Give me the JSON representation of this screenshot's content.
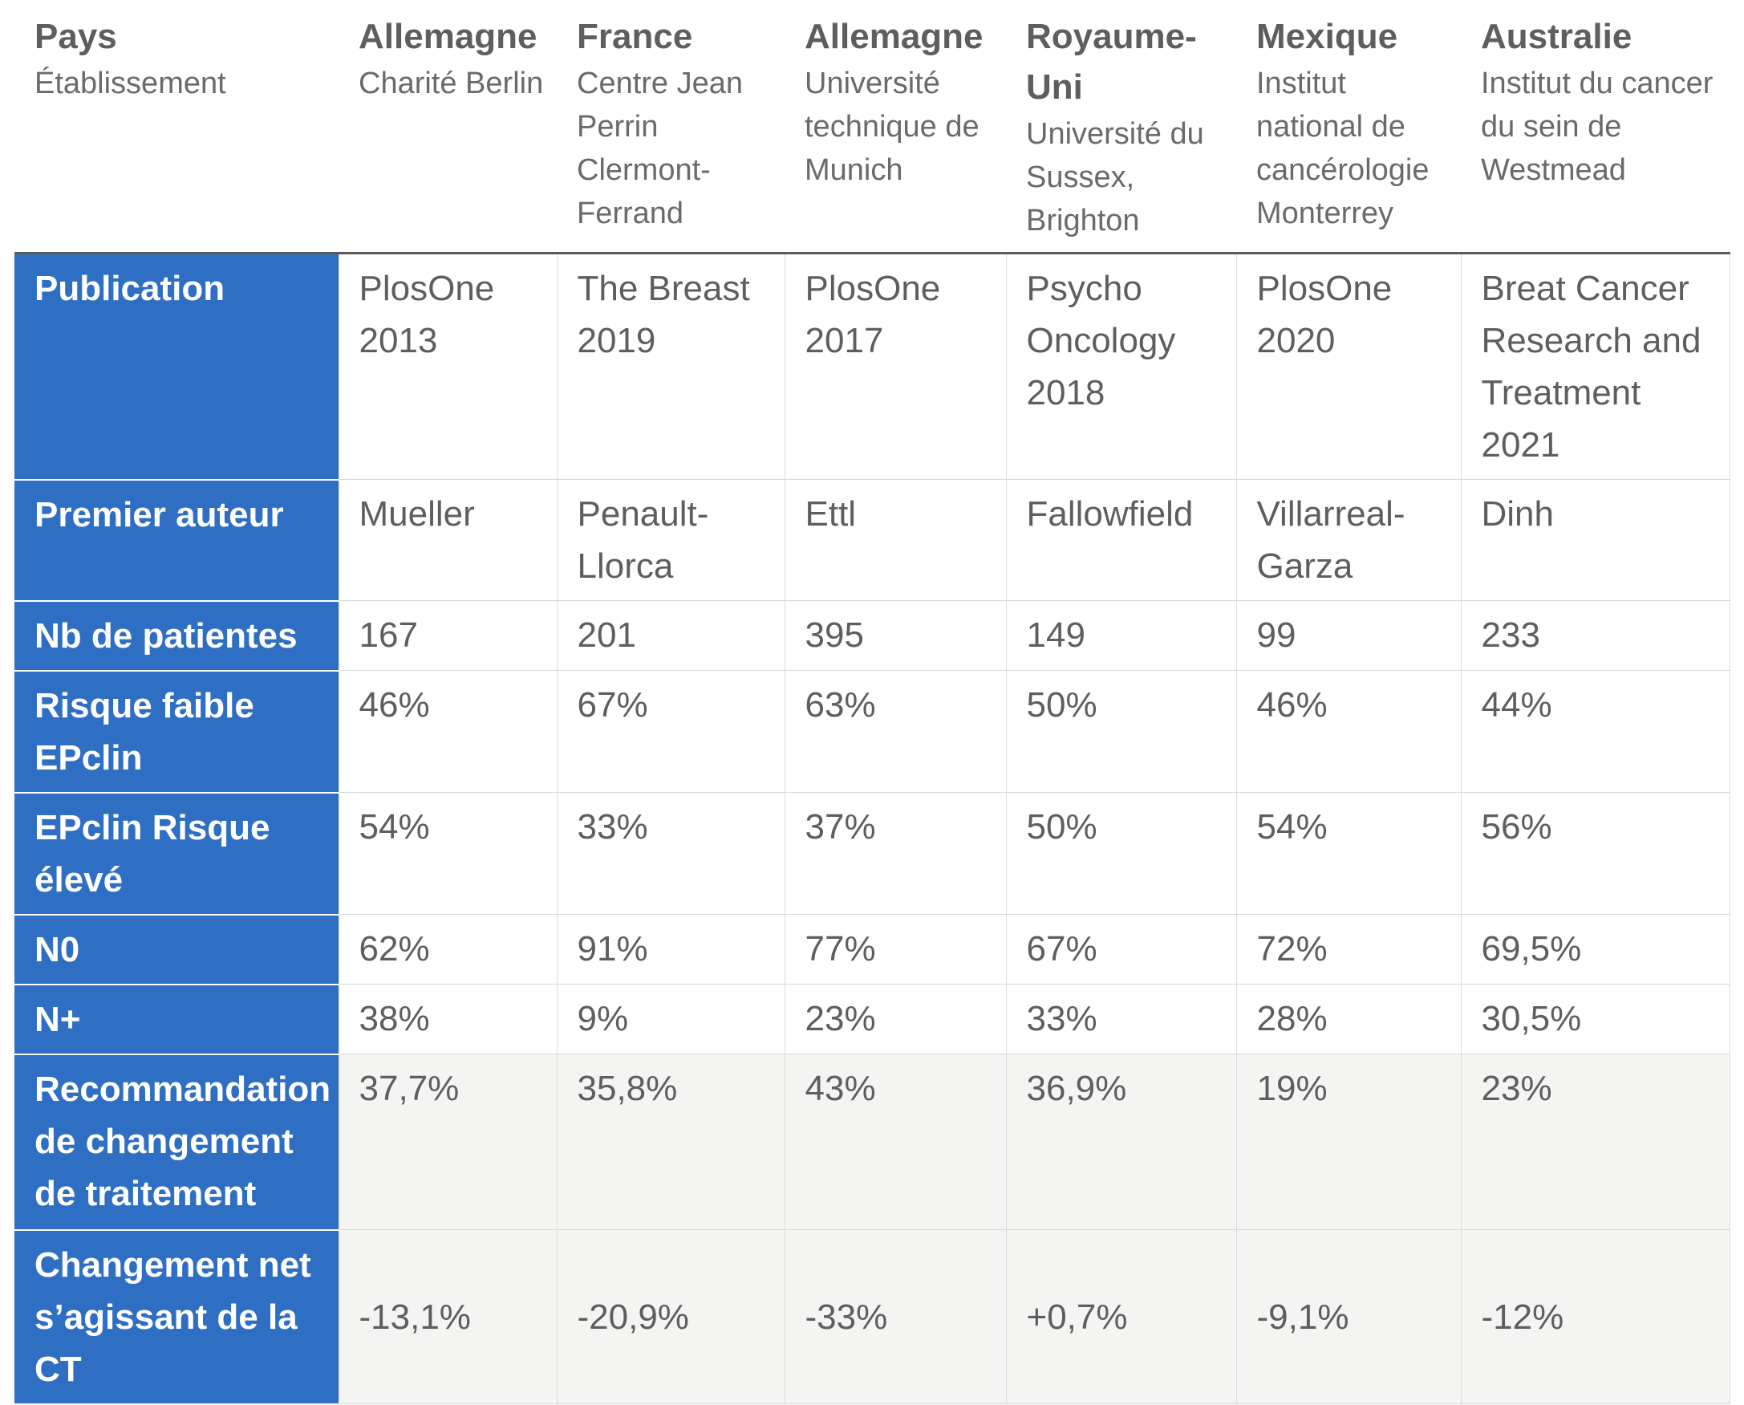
{
  "header": {
    "label_main": "Pays",
    "label_sub": "Établissement",
    "columns": [
      {
        "country": "Allemagne",
        "institution": "Charité Berlin"
      },
      {
        "country": "France",
        "institution": "Centre Jean Perrin Clermont-Ferrand"
      },
      {
        "country": "Allemagne",
        "institution": "Université technique de Munich"
      },
      {
        "country": "Royaume-Uni",
        "institution": "Université du Sussex, Brighton"
      },
      {
        "country": "Mexique",
        "institution": "Institut national de cancérologie Monterrey"
      },
      {
        "country": "Australie",
        "institution": "Institut du cancer du sein de Westmead"
      }
    ]
  },
  "rows": [
    {
      "label": "Publication",
      "values": [
        "PlosOne 2013",
        "The Breast 2019",
        "PlosOne 2017",
        "Psycho Oncology 2018",
        "PlosOne 2020",
        "Breat Cancer Research and Treatment 2021"
      ]
    },
    {
      "label": "Premier auteur",
      "values": [
        "Mueller",
        "Penault-Llorca",
        "Ettl",
        "Fallowfield",
        "Villarreal-Garza",
        "Dinh"
      ]
    },
    {
      "label": "Nb de patientes",
      "values": [
        "167",
        "201",
        "395",
        "149",
        "99",
        "233"
      ]
    },
    {
      "label": "Risque faible EPclin",
      "values": [
        "46%",
        "67%",
        "63%",
        "50%",
        "46%",
        "44%"
      ]
    },
    {
      "label": "EPclin Risque élevé",
      "values": [
        "54%",
        "33%",
        "37%",
        "50%",
        "54%",
        "56%"
      ]
    },
    {
      "label": "N0",
      "values": [
        "62%",
        "91%",
        "77%",
        "67%",
        "72%",
        "69,5%"
      ]
    },
    {
      "label": "N+",
      "values": [
        "38%",
        "9%",
        "23%",
        "33%",
        "28%",
        "30,5%"
      ]
    },
    {
      "label": "Recommandation de changement de traitement",
      "values": [
        "37,7%",
        "35,8%",
        "43%",
        "36,9%",
        "19%",
        "23%"
      ]
    },
    {
      "label": "Changement net s’agissant de la CT",
      "values": [
        "-13,1%",
        "-20,9%",
        "-33%",
        "+0,7%",
        "-9,1%",
        "-12%"
      ]
    }
  ]
}
